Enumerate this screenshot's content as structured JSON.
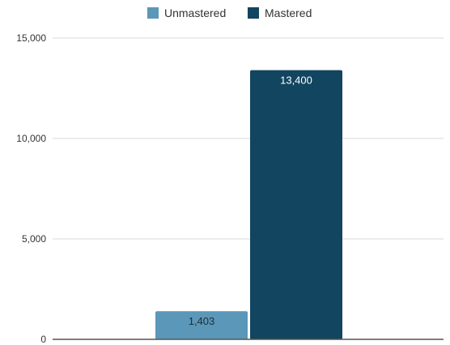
{
  "chart_data": {
    "type": "bar",
    "categories": [
      ""
    ],
    "series": [
      {
        "name": "Unmastered",
        "values": [
          1403
        ],
        "labels": [
          "1,403"
        ],
        "color": "#5b97b8",
        "label_color": "#1f2d36"
      },
      {
        "name": "Mastered",
        "values": [
          13400
        ],
        "labels": [
          "13,400"
        ],
        "color": "#12455f",
        "label_color": "#ffffff"
      }
    ],
    "title": "",
    "xlabel": "",
    "ylabel": "",
    "ylim": [
      0,
      15000
    ],
    "yticks": [
      0,
      5000,
      10000,
      15000
    ],
    "ytick_labels": [
      "0",
      "5,000",
      "10,000",
      "15,000"
    ],
    "grid": true,
    "legend": "top-center",
    "colors": {
      "grid": "#d9d9d9",
      "baseline": "#555555",
      "text": "#333333"
    }
  }
}
